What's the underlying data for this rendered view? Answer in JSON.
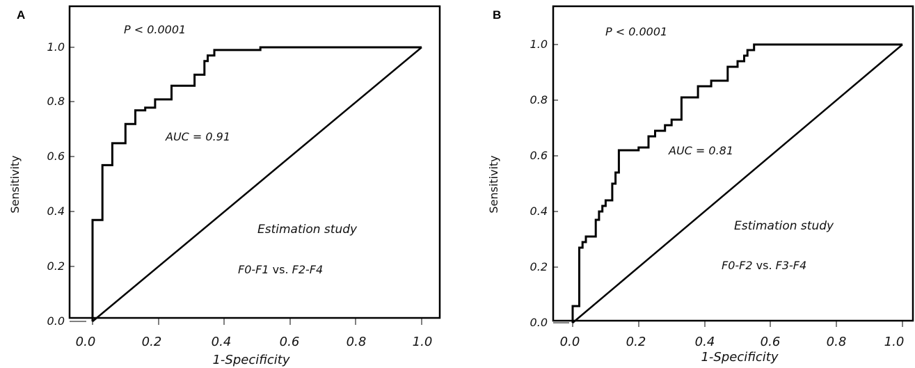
{
  "chart_data": [
    {
      "type": "line",
      "panel_label": "A",
      "title": "",
      "xlabel": "1-Specificity",
      "ylabel": "Sensitivity",
      "xlim": [
        0.0,
        1.0
      ],
      "ylim": [
        0.0,
        1.0
      ],
      "x_ticks": [
        "0.0",
        "0.2",
        "0.4",
        "0.6",
        "0.8",
        "1.0"
      ],
      "y_ticks": [
        "0.0",
        "0.2",
        "0.4",
        "0.6",
        "0.8",
        "1.0"
      ],
      "grid": false,
      "annotations": {
        "p_value": "P < 0.0001",
        "auc": "AUC = 0.91",
        "study": "Estimation study",
        "comparison_left": "F0-F1",
        "comparison_vs": "vs.",
        "comparison_right": "F2-F4"
      },
      "series": [
        {
          "x": [
            0.0,
            0.0,
            0.03,
            0.03,
            0.06,
            0.06,
            0.1,
            0.1,
            0.13,
            0.13,
            0.16,
            0.16,
            0.19,
            0.19,
            0.21,
            0.21,
            0.24,
            0.24,
            0.31,
            0.31,
            0.34,
            0.34,
            0.35,
            0.35,
            0.37,
            0.37,
            0.51,
            0.51,
            1.0
          ],
          "y": [
            0.0,
            0.37,
            0.37,
            0.57,
            0.57,
            0.65,
            0.65,
            0.72,
            0.72,
            0.77,
            0.77,
            0.78,
            0.78,
            0.81,
            0.81,
            0.81,
            0.81,
            0.86,
            0.86,
            0.9,
            0.9,
            0.95,
            0.95,
            0.97,
            0.97,
            0.99,
            0.99,
            1.0,
            1.0
          ]
        },
        {
          "x": [
            0.0,
            1.0
          ],
          "y": [
            0.0,
            1.0
          ]
        }
      ]
    },
    {
      "type": "line",
      "panel_label": "B",
      "title": "",
      "xlabel": "1-Specificity",
      "ylabel": "Sensitivity",
      "xlim": [
        0.0,
        1.0
      ],
      "ylim": [
        0.0,
        1.0
      ],
      "x_ticks": [
        "0.0",
        "0.2",
        "0.4",
        "0.6",
        "0.8",
        "1.0"
      ],
      "y_ticks": [
        "0.0",
        "0.2",
        "0.4",
        "0.6",
        "0.8",
        "1.0"
      ],
      "grid": false,
      "annotations": {
        "p_value": "P < 0.0001",
        "auc": "AUC = 0.81",
        "study": "Estimation study",
        "comparison_left": "F0-F2",
        "comparison_vs": "vs.",
        "comparison_right": "F3-F4"
      },
      "series": [
        {
          "x": [
            0.0,
            0.0,
            0.02,
            0.02,
            0.03,
            0.03,
            0.04,
            0.04,
            0.07,
            0.07,
            0.08,
            0.08,
            0.09,
            0.09,
            0.1,
            0.1,
            0.12,
            0.12,
            0.13,
            0.13,
            0.14,
            0.14,
            0.2,
            0.2,
            0.23,
            0.23,
            0.25,
            0.25,
            0.28,
            0.28,
            0.3,
            0.3,
            0.33,
            0.33,
            0.38,
            0.38,
            0.42,
            0.42,
            0.47,
            0.47,
            0.5,
            0.5,
            0.52,
            0.52,
            0.53,
            0.53,
            0.55,
            0.55,
            1.0
          ],
          "y": [
            0.0,
            0.06,
            0.06,
            0.27,
            0.27,
            0.29,
            0.29,
            0.31,
            0.31,
            0.37,
            0.37,
            0.4,
            0.4,
            0.42,
            0.42,
            0.44,
            0.44,
            0.5,
            0.5,
            0.54,
            0.54,
            0.62,
            0.62,
            0.63,
            0.63,
            0.67,
            0.67,
            0.69,
            0.69,
            0.71,
            0.71,
            0.73,
            0.73,
            0.81,
            0.81,
            0.85,
            0.85,
            0.87,
            0.87,
            0.92,
            0.92,
            0.94,
            0.94,
            0.96,
            0.96,
            0.98,
            0.98,
            1.0,
            1.0
          ]
        },
        {
          "x": [
            0.0,
            1.0
          ],
          "y": [
            0.0,
            1.0
          ]
        }
      ]
    }
  ]
}
